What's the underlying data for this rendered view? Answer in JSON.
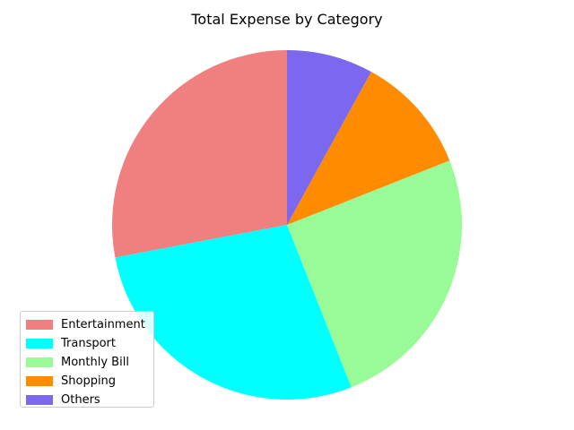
{
  "chart_data": {
    "type": "pie",
    "title": "Total Expense by Category",
    "categories": [
      "Entertainment",
      "Transport",
      "Monthly Bill",
      "Shopping",
      "Others"
    ],
    "values": [
      28,
      28,
      25,
      11,
      8
    ],
    "colors": [
      "#f08080",
      "#00ffff",
      "#98fb98",
      "#ff8c00",
      "#7b68ee"
    ],
    "start_angle_deg": 90,
    "direction": "counterclockwise",
    "legend_position": "lower-left"
  }
}
